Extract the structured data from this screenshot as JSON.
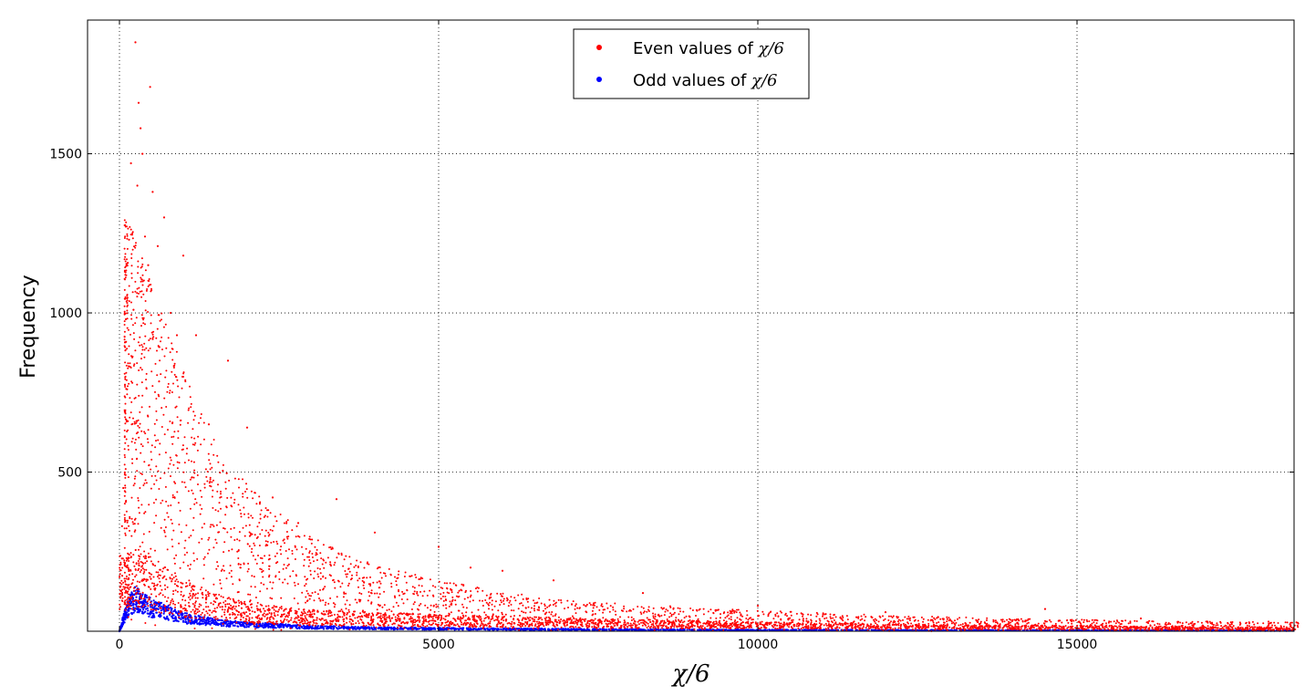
{
  "chart_data": {
    "type": "scatter",
    "title": "",
    "xlabel": "χ/6",
    "ylabel": "Frequency",
    "xlim": [
      -500,
      18400
    ],
    "ylim": [
      0,
      1920
    ],
    "xticks": [
      0,
      5000,
      10000,
      15000
    ],
    "yticks": [
      500,
      1000,
      1500
    ],
    "xtick_labels": [
      "0",
      "5000",
      "10000",
      "15000"
    ],
    "ytick_labels": [
      "500",
      "1000",
      "1500"
    ],
    "grid": true,
    "legend_position": "top-center",
    "series": [
      {
        "name_prefix": "Even values of ",
        "name_math": "χ/6",
        "color": "#ff0000",
        "description_points": [
          [
            40,
            330
          ],
          [
            60,
            450
          ],
          [
            100,
            980
          ],
          [
            120,
            760
          ],
          [
            150,
            1230
          ],
          [
            180,
            1470
          ],
          [
            220,
            1010
          ],
          [
            250,
            1850
          ],
          [
            280,
            1400
          ],
          [
            300,
            1660
          ],
          [
            330,
            1580
          ],
          [
            360,
            1500
          ],
          [
            400,
            1240
          ],
          [
            450,
            1150
          ],
          [
            480,
            1710
          ],
          [
            520,
            1380
          ],
          [
            600,
            1210
          ],
          [
            700,
            1300
          ],
          [
            800,
            1000
          ],
          [
            900,
            930
          ],
          [
            1000,
            1180
          ],
          [
            1200,
            930
          ],
          [
            1400,
            650
          ],
          [
            1700,
            850
          ],
          [
            2000,
            640
          ],
          [
            2400,
            420
          ],
          [
            2800,
            340
          ],
          [
            3400,
            415
          ],
          [
            4000,
            310
          ],
          [
            5000,
            265
          ],
          [
            5500,
            200
          ],
          [
            6000,
            190
          ],
          [
            6800,
            160
          ],
          [
            8200,
            120
          ],
          [
            10000,
            80
          ],
          [
            12000,
            60
          ],
          [
            14500,
            70
          ],
          [
            16000,
            40
          ],
          [
            18000,
            30
          ]
        ],
        "upper_envelope": [
          [
            150,
            1300
          ],
          [
            400,
            1150
          ],
          [
            800,
            930
          ],
          [
            1200,
            720
          ],
          [
            1600,
            560
          ],
          [
            2000,
            460
          ],
          [
            2500,
            370
          ],
          [
            3000,
            300
          ],
          [
            3500,
            250
          ],
          [
            4000,
            210
          ],
          [
            5000,
            160
          ],
          [
            6000,
            125
          ],
          [
            7000,
            100
          ],
          [
            8000,
            85
          ],
          [
            10000,
            65
          ],
          [
            12000,
            50
          ],
          [
            14000,
            40
          ],
          [
            16000,
            33
          ],
          [
            18400,
            28
          ]
        ],
        "lower_band": [
          [
            100,
            160
          ],
          [
            300,
            180
          ],
          [
            600,
            150
          ],
          [
            1000,
            110
          ],
          [
            1500,
            80
          ],
          [
            2000,
            60
          ],
          [
            3000,
            45
          ],
          [
            5000,
            35
          ],
          [
            8000,
            25
          ],
          [
            12000,
            15
          ],
          [
            18400,
            8
          ]
        ]
      },
      {
        "name_prefix": "Odd values of ",
        "name_math": "χ/6",
        "color": "#0000ff",
        "description_points": [
          [
            0,
            0
          ],
          [
            60,
            40
          ],
          [
            120,
            70
          ],
          [
            200,
            100
          ],
          [
            250,
            110
          ],
          [
            350,
            95
          ],
          [
            500,
            80
          ],
          [
            800,
            60
          ],
          [
            1000,
            45
          ],
          [
            1500,
            30
          ],
          [
            2000,
            22
          ],
          [
            3000,
            14
          ],
          [
            4000,
            10
          ],
          [
            6000,
            7
          ],
          [
            8000,
            5
          ],
          [
            10000,
            4
          ],
          [
            14000,
            3
          ],
          [
            18000,
            2
          ]
        ]
      }
    ]
  }
}
